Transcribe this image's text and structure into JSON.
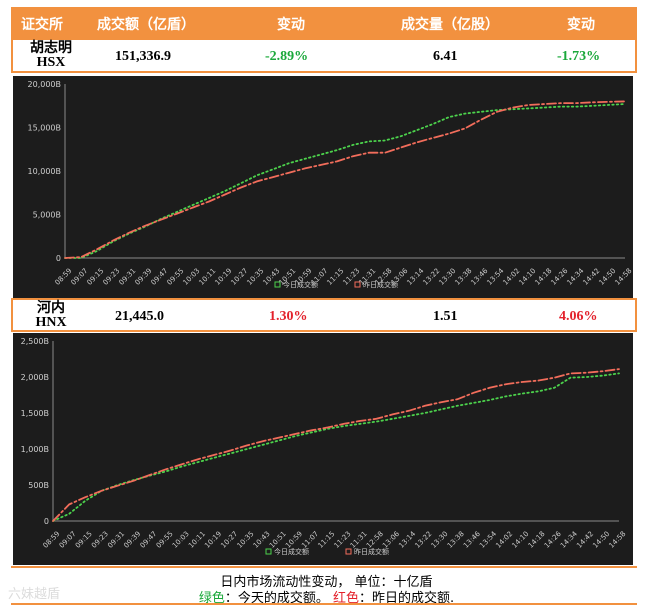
{
  "header": {
    "col1": "证交所",
    "col2": "成交额（亿盾）",
    "col3": "变动",
    "col4": "成交量（亿股）",
    "col5": "变动"
  },
  "hsx": {
    "name_line1": "胡志明",
    "name_line2": "HSX",
    "value": "151,336.9",
    "value_change": "-2.89%",
    "volume": "6.41",
    "volume_change": "-1.73%"
  },
  "hnx": {
    "name_line1": "河内",
    "name_line2": "HNX",
    "value": "21,445.0",
    "value_change": "1.30%",
    "volume": "1.51",
    "volume_change": "4.06%"
  },
  "caption": {
    "line1": "日内市场流动性变动，  单位：十亿盾",
    "line2_green": "绿色",
    "line2_green_text": "：今天的成交额。  ",
    "line2_red": "红色",
    "line2_red_text": "：昨日的成交额."
  },
  "watermark": "六妹越盾",
  "colors": {
    "today": "#4cd24c",
    "yesterday": "#f26d5b",
    "accent": "#f2913f"
  },
  "chart_data": [
    {
      "type": "line",
      "x": [
        "08:59",
        "09:07",
        "09:15",
        "09:23",
        "09:31",
        "09:39",
        "09:47",
        "09:55",
        "10:03",
        "10:11",
        "10:19",
        "10:27",
        "10:35",
        "10:43",
        "10:51",
        "10:59",
        "11:07",
        "11:15",
        "11:23",
        "11:31",
        "12:58",
        "13:06",
        "13:14",
        "13:22",
        "13:30",
        "13:38",
        "13:46",
        "13:54",
        "14:02",
        "14:10",
        "14:18",
        "14:26",
        "14:34",
        "14:42",
        "14:50",
        "14:58"
      ],
      "ylim": [
        0,
        20000
      ],
      "yticks": [
        "0",
        "5,000B",
        "10,000B",
        "15,000B",
        "20,000B"
      ],
      "series": [
        {
          "name": "今日成交额",
          "values": [
            0,
            0,
            800,
            1900,
            2800,
            3600,
            4500,
            5300,
            6100,
            6900,
            7700,
            8600,
            9500,
            10200,
            10900,
            11400,
            11900,
            12400,
            13000,
            13400,
            13500,
            14000,
            14700,
            15400,
            16200,
            16600,
            16800,
            17000,
            17100,
            17200,
            17300,
            17400,
            17400,
            17500,
            17600,
            17700
          ]
        },
        {
          "name": "昨日成交额",
          "values": [
            0,
            100,
            1000,
            2000,
            2900,
            3700,
            4400,
            5100,
            5800,
            6500,
            7300,
            8100,
            8800,
            9300,
            9800,
            10300,
            10700,
            11100,
            11700,
            12100,
            12100,
            12700,
            13300,
            13800,
            14300,
            14900,
            15900,
            16800,
            17300,
            17600,
            17700,
            17800,
            17800,
            17900,
            17950,
            18000
          ]
        }
      ],
      "legend": [
        "今日成交额",
        "昨日成交额"
      ]
    },
    {
      "type": "line",
      "x": [
        "08:59",
        "09:07",
        "09:15",
        "09:23",
        "09:31",
        "09:39",
        "09:47",
        "09:55",
        "10:03",
        "10:11",
        "10:19",
        "10:27",
        "10:35",
        "10:43",
        "10:51",
        "10:59",
        "11:07",
        "11:15",
        "11:23",
        "11:31",
        "12:58",
        "13:06",
        "13:14",
        "13:22",
        "13:30",
        "13:38",
        "13:46",
        "13:54",
        "14:02",
        "14:10",
        "14:18",
        "14:26",
        "14:34",
        "14:42",
        "14:50",
        "14:58"
      ],
      "ylim": [
        0,
        2500
      ],
      "yticks": [
        "0",
        "500B",
        "1,000B",
        "1,500B",
        "2,000B",
        "2,500B"
      ],
      "series": [
        {
          "name": "今日成交额",
          "values": [
            0,
            100,
            280,
            420,
            500,
            570,
            630,
            690,
            760,
            820,
            880,
            940,
            1000,
            1060,
            1120,
            1180,
            1230,
            1280,
            1320,
            1350,
            1380,
            1420,
            1460,
            1500,
            1550,
            1600,
            1640,
            1680,
            1730,
            1770,
            1800,
            1850,
            1990,
            2000,
            2020,
            2050
          ]
        },
        {
          "name": "昨日成交额",
          "values": [
            0,
            230,
            330,
            420,
            490,
            560,
            640,
            720,
            790,
            860,
            920,
            980,
            1050,
            1110,
            1160,
            1210,
            1260,
            1300,
            1350,
            1390,
            1420,
            1480,
            1530,
            1600,
            1650,
            1690,
            1780,
            1850,
            1900,
            1930,
            1950,
            1990,
            2050,
            2060,
            2080,
            2110
          ]
        }
      ],
      "legend": [
        "今日成交额",
        "昨日成交额"
      ]
    }
  ]
}
